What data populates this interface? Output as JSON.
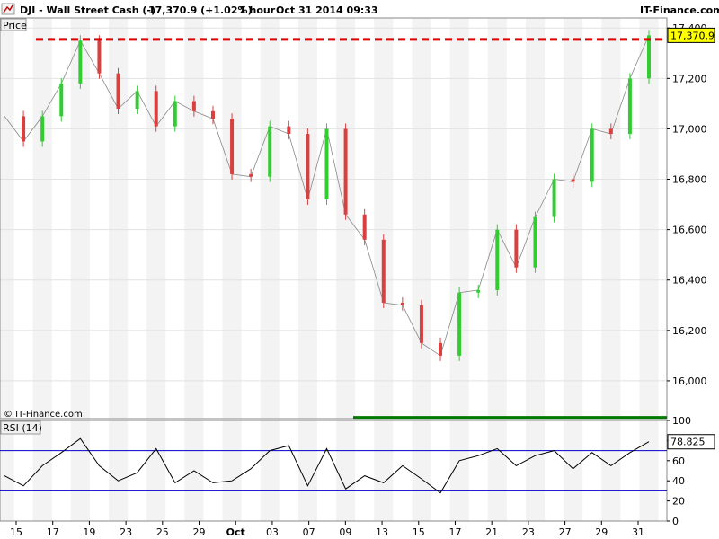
{
  "header": {
    "symbol": "DJI - Wall Street Cash (-)",
    "quote": "17,370.9 (+1.02%)",
    "interval": "1 hour",
    "datetime": "Oct 31 2014 09:33",
    "brand": "IT-Finance.com"
  },
  "panels": {
    "price_label": "Price",
    "rsi_label": "RSI (14)",
    "copyright": "© IT-Finance.com"
  },
  "colors": {
    "up": "#33cc33",
    "down": "#d94040",
    "resistance": "#e00000",
    "support": "#007a00",
    "rsi_line": "#000000",
    "rsi_band": "#0000cc"
  },
  "chart_data": [
    {
      "type": "line",
      "title": "DJI - Wall Street Cash (-)",
      "ylabel": "Price",
      "ylim": [
        15850,
        17440
      ],
      "y_ticks": [
        "16,000",
        "16,200",
        "16,400",
        "16,600",
        "16,800",
        "17,000",
        "17,200",
        "17,400"
      ],
      "x_ticks": [
        "15",
        "17",
        "19",
        "23",
        "25",
        "29",
        "Oct",
        "03",
        "07",
        "09",
        "13",
        "15",
        "17",
        "21",
        "23",
        "27",
        "29",
        "31"
      ],
      "last_value": "17,370.9",
      "series": [
        {
          "points": [
            [
              "Sep 15",
              17050
            ],
            [
              "Sep 16",
              16950
            ],
            [
              "Sep 17",
              17050
            ],
            [
              "Sep 18",
              17180
            ],
            [
              "Sep 19",
              17350
            ],
            [
              "Sep 22",
              17220
            ],
            [
              "Sep 23",
              17080
            ],
            [
              "Sep 24",
              17150
            ],
            [
              "Sep 25",
              17010
            ],
            [
              "Sep 26",
              17110
            ],
            [
              "Sep 29",
              17070
            ],
            [
              "Sep 30",
              17040
            ],
            [
              "Oct 01",
              16820
            ],
            [
              "Oct 02",
              16810
            ],
            [
              "Oct 03",
              17010
            ],
            [
              "Oct 06",
              16980
            ],
            [
              "Oct 07",
              16720
            ],
            [
              "Oct 08",
              17000
            ],
            [
              "Oct 09",
              16660
            ],
            [
              "Oct 10",
              16560
            ],
            [
              "Oct 13",
              16310
            ],
            [
              "Oct 14",
              16300
            ],
            [
              "Oct 15",
              16150
            ],
            [
              "Oct 16",
              16100
            ],
            [
              "Oct 17",
              16350
            ],
            [
              "Oct 20",
              16360
            ],
            [
              "Oct 21",
              16600
            ],
            [
              "Oct 22",
              16450
            ],
            [
              "Oct 23",
              16650
            ],
            [
              "Oct 24",
              16800
            ],
            [
              "Oct 27",
              16790
            ],
            [
              "Oct 28",
              17000
            ],
            [
              "Oct 29",
              16980
            ],
            [
              "Oct 30",
              17200
            ],
            [
              "Oct 31",
              17370.9
            ]
          ]
        }
      ],
      "annotations": [
        {
          "kind": "horizontal-line",
          "value": 17355,
          "style": "dashed",
          "color": "#e00000"
        },
        {
          "kind": "horizontal-line",
          "value": 15855,
          "style": "solid",
          "color": "#007a00"
        }
      ]
    },
    {
      "type": "line",
      "title": "RSI (14)",
      "ylim": [
        0,
        100
      ],
      "y_ticks": [
        "0",
        "20",
        "40",
        "60",
        "80",
        "100"
      ],
      "bands": [
        30,
        70
      ],
      "last_value": "78.825",
      "series": [
        {
          "points": [
            [
              "Sep 15",
              45
            ],
            [
              "Sep 16",
              35
            ],
            [
              "Sep 17",
              55
            ],
            [
              "Sep 18",
              68
            ],
            [
              "Sep 19",
              82
            ],
            [
              "Sep 22",
              55
            ],
            [
              "Sep 23",
              40
            ],
            [
              "Sep 24",
              48
            ],
            [
              "Sep 25",
              72
            ],
            [
              "Sep 26",
              38
            ],
            [
              "Sep 29",
              50
            ],
            [
              "Sep 30",
              38
            ],
            [
              "Oct 01",
              40
            ],
            [
              "Oct 02",
              52
            ],
            [
              "Oct 03",
              70
            ],
            [
              "Oct 06",
              75
            ],
            [
              "Oct 07",
              35
            ],
            [
              "Oct 08",
              72
            ],
            [
              "Oct 09",
              32
            ],
            [
              "Oct 10",
              45
            ],
            [
              "Oct 13",
              38
            ],
            [
              "Oct 14",
              55
            ],
            [
              "Oct 15",
              42
            ],
            [
              "Oct 16",
              28
            ],
            [
              "Oct 17",
              60
            ],
            [
              "Oct 20",
              65
            ],
            [
              "Oct 21",
              72
            ],
            [
              "Oct 22",
              55
            ],
            [
              "Oct 23",
              65
            ],
            [
              "Oct 24",
              70
            ],
            [
              "Oct 27",
              52
            ],
            [
              "Oct 28",
              68
            ],
            [
              "Oct 29",
              55
            ],
            [
              "Oct 30",
              68
            ],
            [
              "Oct 31",
              78.8
            ]
          ]
        }
      ]
    }
  ]
}
